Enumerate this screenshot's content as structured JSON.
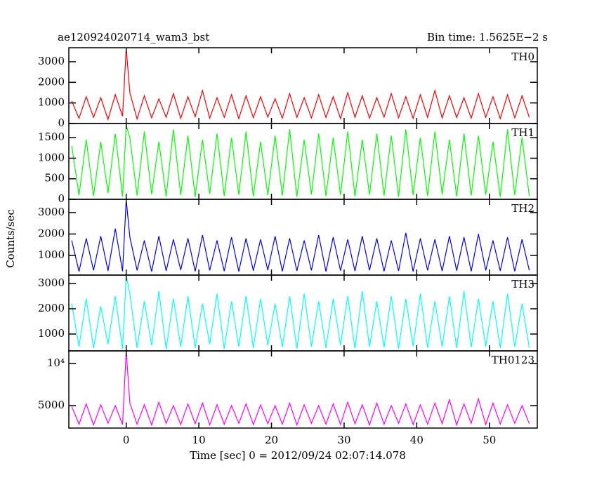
{
  "title": "ae120924020714_wam3_bst",
  "bin_time_label": "Bin time: 1.5625E−2 s",
  "x_label": "Time [sec] 0 = 2012/09/24 02:07:14.078",
  "y_label": "Counts/sec",
  "chart_data": [
    {
      "type": "line",
      "name": "TH0",
      "color": "#ff0000",
      "xlim": [
        -7.9,
        56.6
      ],
      "xticks": [
        0,
        10,
        20,
        30,
        40,
        50
      ],
      "ylim": [
        0,
        3680
      ],
      "yticks": [
        0,
        1000,
        2000,
        3000
      ],
      "x": [
        -7.5,
        -6.5,
        -5.5,
        -4.5,
        -3.5,
        -2.5,
        -1.5,
        -0.5,
        0,
        0.5,
        1.5,
        2.5,
        3.5,
        4.5,
        5.5,
        6.5,
        7.5,
        8.5,
        9.5,
        10.5,
        11.5,
        12.5,
        13.5,
        14.5,
        15.5,
        16.5,
        17.5,
        18.5,
        19.5,
        20.5,
        21.5,
        22.5,
        23.5,
        24.5,
        25.5,
        26.5,
        27.5,
        28.5,
        29.5,
        30.5,
        31.5,
        32.5,
        33.5,
        34.5,
        35.5,
        36.5,
        37.5,
        38.5,
        39.5,
        40.5,
        41.5,
        42.5,
        43.5,
        44.5,
        45.5,
        46.5,
        47.5,
        48.5,
        49.5,
        50.5,
        51.5,
        52.5,
        53.5,
        54.5,
        55.5
      ],
      "values": [
        1100,
        250,
        1300,
        300,
        1250,
        200,
        1400,
        350,
        3650,
        1500,
        220,
        1350,
        280,
        1200,
        300,
        1450,
        250,
        1300,
        330,
        1600,
        260,
        1250,
        300,
        1400,
        240,
        1350,
        280,
        1300,
        310,
        1200,
        260,
        1450,
        300,
        1250,
        270,
        1400,
        290,
        1300,
        240,
        1500,
        300,
        1350,
        260,
        1250,
        310,
        1450,
        280,
        1300,
        250,
        1400,
        300,
        1600,
        270,
        1350,
        290,
        1250,
        260,
        1450,
        300,
        1300,
        240,
        1400,
        280,
        1350,
        300
      ]
    },
    {
      "type": "line",
      "name": "TH1",
      "color": "#00ff00",
      "xlim": [
        -7.9,
        56.6
      ],
      "xticks": [
        0,
        10,
        20,
        30,
        40,
        50
      ],
      "ylim": [
        0,
        1845
      ],
      "yticks": [
        0,
        500,
        1000,
        1500
      ],
      "x": [
        -7.5,
        -6.5,
        -5.5,
        -4.5,
        -3.5,
        -2.5,
        -1.5,
        -0.5,
        0,
        0.5,
        1.5,
        2.5,
        3.5,
        4.5,
        5.5,
        6.5,
        7.5,
        8.5,
        9.5,
        10.5,
        11.5,
        12.5,
        13.5,
        14.5,
        15.5,
        16.5,
        17.5,
        18.5,
        19.5,
        20.5,
        21.5,
        22.5,
        23.5,
        24.5,
        25.5,
        26.5,
        27.5,
        28.5,
        29.5,
        30.5,
        31.5,
        32.5,
        33.5,
        34.5,
        35.5,
        36.5,
        37.5,
        38.5,
        39.5,
        40.5,
        41.5,
        42.5,
        43.5,
        44.5,
        45.5,
        46.5,
        47.5,
        48.5,
        49.5,
        50.5,
        51.5,
        52.5,
        53.5,
        54.5,
        55.5
      ],
      "values": [
        1300,
        100,
        1450,
        80,
        1400,
        150,
        1600,
        60,
        1800,
        1500,
        90,
        1650,
        120,
        1400,
        70,
        1700,
        100,
        1550,
        60,
        1450,
        130,
        1600,
        80,
        1500,
        110,
        1650,
        70,
        1400,
        100,
        1550,
        90,
        1700,
        60,
        1450,
        120,
        1600,
        80,
        1500,
        100,
        1650,
        70,
        1450,
        110,
        1600,
        90,
        1550,
        60,
        1700,
        100,
        1500,
        80,
        1650,
        120,
        1450,
        70,
        1600,
        90,
        1550,
        110,
        1400,
        60,
        1700,
        100,
        1500,
        80
      ]
    },
    {
      "type": "line",
      "name": "TH2",
      "color": "#0000ff",
      "xlim": [
        -7.9,
        56.6
      ],
      "xticks": [
        0,
        10,
        20,
        30,
        40,
        50
      ],
      "ylim": [
        82,
        3620
      ],
      "yticks": [
        1000,
        2000,
        3000
      ],
      "x": [
        -7.5,
        -6.5,
        -5.5,
        -4.5,
        -3.5,
        -2.5,
        -1.5,
        -0.5,
        0,
        0.5,
        1.5,
        2.5,
        3.5,
        4.5,
        5.5,
        6.5,
        7.5,
        8.5,
        9.5,
        10.5,
        11.5,
        12.5,
        13.5,
        14.5,
        15.5,
        16.5,
        17.5,
        18.5,
        19.5,
        20.5,
        21.5,
        22.5,
        23.5,
        24.5,
        25.5,
        26.5,
        27.5,
        28.5,
        29.5,
        30.5,
        31.5,
        32.5,
        33.5,
        34.5,
        35.5,
        36.5,
        37.5,
        38.5,
        39.5,
        40.5,
        41.5,
        42.5,
        43.5,
        44.5,
        45.5,
        46.5,
        47.5,
        48.5,
        49.5,
        50.5,
        51.5,
        52.5,
        53.5,
        54.5,
        55.5
      ],
      "values": [
        1700,
        250,
        1800,
        300,
        1900,
        280,
        2250,
        260,
        3600,
        1850,
        300,
        1700,
        250,
        1900,
        280,
        1750,
        320,
        1800,
        260,
        1950,
        300,
        1700,
        270,
        1850,
        250,
        1800,
        290,
        1750,
        310,
        1900,
        260,
        1800,
        280,
        1700,
        300,
        1950,
        250,
        1850,
        290,
        1750,
        270,
        1900,
        300,
        1800,
        260,
        1700,
        280,
        2050,
        250,
        1800,
        300,
        1750,
        270,
        1900,
        290,
        1850,
        260,
        2000,
        300,
        1700,
        280,
        1850,
        260,
        1750,
        300
      ]
    },
    {
      "type": "line",
      "name": "TH3",
      "color": "#00ffff",
      "xlim": [
        -7.9,
        56.6
      ],
      "xticks": [
        0,
        10,
        20,
        30,
        40,
        50
      ],
      "ylim": [
        333,
        3333
      ],
      "yticks": [
        1000,
        2000,
        3000
      ],
      "x": [
        -7.5,
        -6.5,
        -5.5,
        -4.5,
        -3.5,
        -2.5,
        -1.5,
        -0.5,
        0,
        0.5,
        1.5,
        2.5,
        3.5,
        4.5,
        5.5,
        6.5,
        7.5,
        8.5,
        9.5,
        10.5,
        11.5,
        12.5,
        13.5,
        14.5,
        15.5,
        16.5,
        17.5,
        18.5,
        19.5,
        20.5,
        21.5,
        22.5,
        23.5,
        24.5,
        25.5,
        26.5,
        27.5,
        28.5,
        29.5,
        30.5,
        31.5,
        32.5,
        33.5,
        34.5,
        35.5,
        36.5,
        37.5,
        38.5,
        39.5,
        40.5,
        41.5,
        42.5,
        43.5,
        44.5,
        45.5,
        46.5,
        47.5,
        48.5,
        49.5,
        50.5,
        51.5,
        52.5,
        53.5,
        54.5,
        55.5
      ],
      "values": [
        2200,
        500,
        2400,
        450,
        2100,
        600,
        2500,
        400,
        3300,
        2600,
        450,
        2300,
        550,
        2700,
        400,
        2400,
        500,
        2500,
        450,
        2200,
        600,
        2600,
        420,
        2300,
        500,
        2500,
        450,
        2400,
        550,
        2200,
        480,
        2500,
        420,
        2600,
        500,
        2300,
        450,
        2400,
        560,
        2500,
        430,
        2700,
        500,
        2300,
        470,
        2500,
        420,
        2400,
        520,
        2600,
        460,
        2300,
        500,
        2500,
        440,
        2700,
        480,
        2400,
        510,
        2300,
        450,
        2600,
        490,
        2200,
        470
      ]
    },
    {
      "type": "line",
      "name": "TH0123",
      "color": "#ff00ff",
      "xlim": [
        -7.9,
        56.6
      ],
      "xticks": [
        0,
        10,
        20,
        30,
        40,
        50
      ],
      "ylim": [
        2333,
        11500
      ],
      "yticks": [
        5000,
        {
          "value": 10000,
          "label": "10⁴"
        }
      ],
      "x": [
        -7.5,
        -6.5,
        -5.5,
        -4.5,
        -3.5,
        -2.5,
        -1.5,
        -0.5,
        0,
        0.5,
        1.5,
        2.5,
        3.5,
        4.5,
        5.5,
        6.5,
        7.5,
        8.5,
        9.5,
        10.5,
        11.5,
        12.5,
        13.5,
        14.5,
        15.5,
        16.5,
        17.5,
        18.5,
        19.5,
        20.5,
        21.5,
        22.5,
        23.5,
        24.5,
        25.5,
        26.5,
        27.5,
        28.5,
        29.5,
        30.5,
        31.5,
        32.5,
        33.5,
        34.5,
        35.5,
        36.5,
        37.5,
        38.5,
        39.5,
        40.5,
        41.5,
        42.5,
        43.5,
        44.5,
        45.5,
        46.5,
        47.5,
        48.5,
        49.5,
        50.5,
        51.5,
        52.5,
        53.5,
        54.5,
        55.5
      ],
      "values": [
        4900,
        2800,
        5200,
        2700,
        5100,
        2900,
        5000,
        2750,
        11500,
        5300,
        2800,
        5100,
        2700,
        5400,
        2900,
        5000,
        2750,
        5200,
        2850,
        5300,
        2700,
        5100,
        2800,
        5000,
        2900,
        5200,
        2750,
        5100,
        2850,
        5000,
        2800,
        5300,
        2700,
        5100,
        2900,
        5000,
        2800,
        5200,
        2750,
        5400,
        2850,
        5100,
        2700,
        5300,
        2800,
        5000,
        2900,
        5200,
        2750,
        5100,
        2800,
        5300,
        2850,
        5700,
        2700,
        5200,
        2900,
        5800,
        2750,
        5300,
        2800,
        5100,
        2900,
        5000,
        2850
      ]
    }
  ]
}
